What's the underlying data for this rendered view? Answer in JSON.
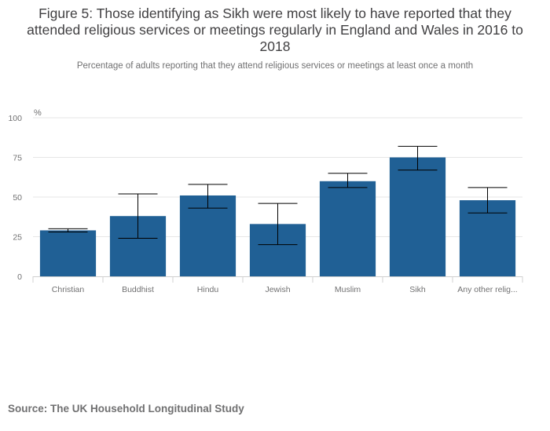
{
  "chart_data": {
    "type": "bar",
    "title": "Figure 5: Those identifying as Sikh were most likely to have reported that they attended religious services or meetings regularly in England and Wales in 2016 to 2018",
    "subtitle": "Percentage of adults reporting that they attend religious services or meetings at least once a month",
    "y_unit": "%",
    "categories": [
      "Christian",
      "Buddhist",
      "Hindu",
      "Jewish",
      "Muslim",
      "Sikh",
      "Any other relig..."
    ],
    "values": [
      29,
      38,
      51,
      33,
      60,
      75,
      48
    ],
    "error_lower": [
      28,
      24,
      43,
      20,
      56,
      67,
      40
    ],
    "error_upper": [
      30,
      52,
      58,
      46,
      65,
      82,
      56
    ],
    "y_ticks": [
      0,
      25,
      50,
      75,
      100
    ],
    "ylim": [
      0,
      100
    ],
    "grid": true,
    "bar_color": "#206095",
    "error_bar_color": "#000000"
  },
  "source": "Source: The UK Household Longitudinal Study"
}
